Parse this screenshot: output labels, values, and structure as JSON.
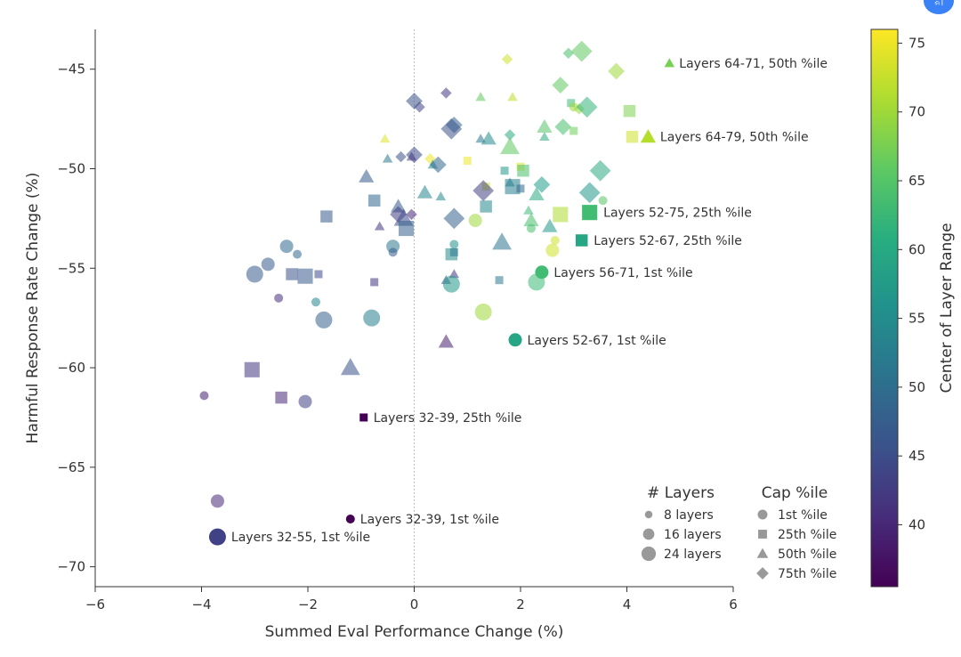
{
  "badge_text": "ᨑᩤ",
  "chart_data": {
    "type": "scatter",
    "xlabel": "Summed Eval Performance Change (%)",
    "ylabel": "Harmful Response Rate Change (%)",
    "xlim": [
      -6,
      6
    ],
    "ylim": [
      -71,
      -43
    ],
    "xticks": [
      "−6",
      "−4",
      "−2",
      "0",
      "2",
      "4",
      "6"
    ],
    "xtick_values": [
      -6,
      -4,
      -2,
      0,
      2,
      4,
      6
    ],
    "yticks": [
      "−45",
      "−50",
      "−55",
      "−60",
      "−65",
      "−70"
    ],
    "ytick_values": [
      -45,
      -50,
      -55,
      -60,
      -65,
      -70
    ],
    "vline_x": 0,
    "colorbar": {
      "label": "Center of Layer Range",
      "range": [
        35.5,
        76
      ],
      "ticks": [
        "40",
        "45",
        "50",
        "55",
        "60",
        "65",
        "70",
        "75"
      ],
      "tick_values": [
        40,
        45,
        50,
        55,
        60,
        65,
        70,
        75
      ],
      "colormap": "viridis"
    },
    "legend_layers": {
      "title": "# Layers",
      "items": [
        {
          "label": "8 layers",
          "size": 8
        },
        {
          "label": "16 layers",
          "size": 16
        },
        {
          "label": "24 layers",
          "size": 24
        }
      ]
    },
    "legend_cap": {
      "title": "Cap %ile",
      "items": [
        {
          "label": "1st %ile",
          "marker": "circle"
        },
        {
          "label": "25th %ile",
          "marker": "square"
        },
        {
          "label": "50th %ile",
          "marker": "triangle"
        },
        {
          "label": "75th %ile",
          "marker": "diamond"
        }
      ]
    },
    "highlighted": [
      {
        "x": 4.8,
        "y": -44.7,
        "marker": "triangle",
        "layers": 8,
        "center": 67.5,
        "label": "Layers 64-71, 50th %ile"
      },
      {
        "x": 4.4,
        "y": -48.4,
        "marker": "triangle",
        "layers": 16,
        "center": 71.5,
        "label": "Layers 64-79, 50th %ile"
      },
      {
        "x": 3.3,
        "y": -52.2,
        "marker": "square",
        "layers": 24,
        "center": 63.5,
        "label": "Layers 52-75, 25th %ile"
      },
      {
        "x": 3.15,
        "y": -53.6,
        "marker": "square",
        "layers": 16,
        "center": 59.5,
        "label": "Layers 52-67, 25th %ile"
      },
      {
        "x": 2.4,
        "y": -55.2,
        "marker": "circle",
        "layers": 16,
        "center": 63.5,
        "label": "Layers 56-71, 1st %ile"
      },
      {
        "x": 1.9,
        "y": -58.6,
        "marker": "circle",
        "layers": 16,
        "center": 59.5,
        "label": "Layers 52-67, 1st %ile"
      },
      {
        "x": -0.95,
        "y": -62.5,
        "marker": "square",
        "layers": 8,
        "center": 35.5,
        "label": "Layers 32-39, 25th %ile"
      },
      {
        "x": -1.2,
        "y": -67.6,
        "marker": "circle",
        "layers": 8,
        "center": 35.5,
        "label": "Layers 32-39, 1st %ile"
      },
      {
        "x": -3.7,
        "y": -68.5,
        "marker": "circle",
        "layers": 24,
        "center": 43.5,
        "label": "Layers 32-55, 1st %ile"
      }
    ],
    "points": [
      {
        "x": -3.7,
        "y": -66.7,
        "m": "circle",
        "s": 16,
        "c": 40
      },
      {
        "x": -3.95,
        "y": -61.4,
        "m": "circle",
        "s": 8,
        "c": 39
      },
      {
        "x": -3.05,
        "y": -60.1,
        "m": "square",
        "s": 24,
        "c": 42
      },
      {
        "x": -2.5,
        "y": -61.5,
        "m": "square",
        "s": 16,
        "c": 40
      },
      {
        "x": -2.05,
        "y": -61.7,
        "m": "circle",
        "s": 16,
        "c": 43
      },
      {
        "x": -1.2,
        "y": -60.0,
        "m": "triangle",
        "s": 24,
        "c": 46
      },
      {
        "x": 0.6,
        "y": -58.7,
        "m": "triangle",
        "s": 16,
        "c": 39
      },
      {
        "x": -3.0,
        "y": -55.3,
        "m": "circle",
        "s": 24,
        "c": 47
      },
      {
        "x": -2.75,
        "y": -54.8,
        "m": "circle",
        "s": 16,
        "c": 47
      },
      {
        "x": -2.55,
        "y": -56.5,
        "m": "circle",
        "s": 8,
        "c": 41
      },
      {
        "x": -2.4,
        "y": -53.9,
        "m": "circle",
        "s": 16,
        "c": 49
      },
      {
        "x": -2.2,
        "y": -54.3,
        "m": "circle",
        "s": 8,
        "c": 49
      },
      {
        "x": -2.3,
        "y": -55.3,
        "m": "square",
        "s": 16,
        "c": 46
      },
      {
        "x": -2.05,
        "y": -55.4,
        "m": "square",
        "s": 24,
        "c": 47
      },
      {
        "x": -1.8,
        "y": -55.3,
        "m": "square",
        "s": 8,
        "c": 45
      },
      {
        "x": -1.85,
        "y": -56.7,
        "m": "circle",
        "s": 8,
        "c": 54
      },
      {
        "x": -1.7,
        "y": -57.6,
        "m": "circle",
        "s": 24,
        "c": 48
      },
      {
        "x": -1.65,
        "y": -52.4,
        "m": "square",
        "s": 16,
        "c": 47
      },
      {
        "x": -0.8,
        "y": -57.5,
        "m": "circle",
        "s": 24,
        "c": 53
      },
      {
        "x": -0.75,
        "y": -55.7,
        "m": "square",
        "s": 8,
        "c": 42
      },
      {
        "x": -0.75,
        "y": -51.6,
        "m": "square",
        "s": 16,
        "c": 49
      },
      {
        "x": -0.9,
        "y": -50.4,
        "m": "triangle",
        "s": 16,
        "c": 47
      },
      {
        "x": -0.65,
        "y": -52.9,
        "m": "triangle",
        "s": 8,
        "c": 42
      },
      {
        "x": -0.5,
        "y": -49.5,
        "m": "triangle",
        "s": 8,
        "c": 52
      },
      {
        "x": -0.4,
        "y": -53.9,
        "m": "circle",
        "s": 16,
        "c": 52
      },
      {
        "x": -0.4,
        "y": -54.2,
        "m": "circle",
        "s": 8,
        "c": 47
      },
      {
        "x": -0.3,
        "y": -51.9,
        "m": "triangle",
        "s": 16,
        "c": 47
      },
      {
        "x": -0.3,
        "y": -52.3,
        "m": "diamond",
        "s": 16,
        "c": 43
      },
      {
        "x": -0.25,
        "y": -49.4,
        "m": "diamond",
        "s": 8,
        "c": 46
      },
      {
        "x": -0.2,
        "y": -52.5,
        "m": "triangle",
        "s": 24,
        "c": 45
      },
      {
        "x": -0.15,
        "y": -53.0,
        "m": "square",
        "s": 24,
        "c": 48
      },
      {
        "x": -0.05,
        "y": -52.3,
        "m": "diamond",
        "s": 8,
        "c": 40
      },
      {
        "x": 0.0,
        "y": -46.6,
        "m": "diamond",
        "s": 16,
        "c": 46
      },
      {
        "x": 0.1,
        "y": -46.9,
        "m": "diamond",
        "s": 8,
        "c": 44
      },
      {
        "x": 0.0,
        "y": -49.3,
        "m": "diamond",
        "s": 16,
        "c": 45
      },
      {
        "x": -0.05,
        "y": -49.4,
        "m": "triangle",
        "s": 8,
        "c": 42
      },
      {
        "x": -0.55,
        "y": -48.5,
        "m": "triangle",
        "s": 8,
        "c": 74
      },
      {
        "x": 0.3,
        "y": -49.5,
        "m": "diamond",
        "s": 8,
        "c": 75
      },
      {
        "x": 0.35,
        "y": -49.8,
        "m": "triangle",
        "s": 8,
        "c": 55
      },
      {
        "x": 0.45,
        "y": -49.8,
        "m": "diamond",
        "s": 16,
        "c": 49
      },
      {
        "x": 0.2,
        "y": -51.2,
        "m": "triangle",
        "s": 16,
        "c": 54
      },
      {
        "x": 0.5,
        "y": -51.4,
        "m": "triangle",
        "s": 8,
        "c": 55
      },
      {
        "x": 0.6,
        "y": -46.2,
        "m": "diamond",
        "s": 8,
        "c": 42
      },
      {
        "x": 0.75,
        "y": -47.8,
        "m": "diamond",
        "s": 16,
        "c": 48
      },
      {
        "x": 0.7,
        "y": -48.0,
        "m": "diamond",
        "s": 24,
        "c": 46
      },
      {
        "x": 0.75,
        "y": -52.5,
        "m": "diamond",
        "s": 24,
        "c": 48
      },
      {
        "x": 0.75,
        "y": -53.8,
        "m": "circle",
        "s": 8,
        "c": 56
      },
      {
        "x": 0.7,
        "y": -54.3,
        "m": "square",
        "s": 16,
        "c": 55
      },
      {
        "x": 0.75,
        "y": -54.2,
        "m": "square",
        "s": 8,
        "c": 52
      },
      {
        "x": 0.6,
        "y": -55.6,
        "m": "triangle",
        "s": 8,
        "c": 46
      },
      {
        "x": 0.75,
        "y": -55.3,
        "m": "triangle",
        "s": 8,
        "c": 42
      },
      {
        "x": 0.7,
        "y": -55.8,
        "m": "circle",
        "s": 24,
        "c": 57
      },
      {
        "x": 1.0,
        "y": -49.6,
        "m": "square",
        "s": 8,
        "c": 75
      },
      {
        "x": 1.15,
        "y": -52.6,
        "m": "circle",
        "s": 16,
        "c": 70
      },
      {
        "x": 1.3,
        "y": -57.2,
        "m": "circle",
        "s": 24,
        "c": 70
      },
      {
        "x": 1.25,
        "y": -46.4,
        "m": "triangle",
        "s": 8,
        "c": 66
      },
      {
        "x": 1.25,
        "y": -48.5,
        "m": "triangle",
        "s": 8,
        "c": 52
      },
      {
        "x": 1.4,
        "y": -48.5,
        "m": "triangle",
        "s": 16,
        "c": 55
      },
      {
        "x": 1.35,
        "y": -50.9,
        "m": "square",
        "s": 8,
        "c": 73
      },
      {
        "x": 1.3,
        "y": -51.1,
        "m": "diamond",
        "s": 24,
        "c": 43
      },
      {
        "x": 1.35,
        "y": -51.9,
        "m": "square",
        "s": 16,
        "c": 55
      },
      {
        "x": 1.65,
        "y": -53.7,
        "m": "triangle",
        "s": 24,
        "c": 51
      },
      {
        "x": 1.6,
        "y": -55.6,
        "m": "square",
        "s": 8,
        "c": 52
      },
      {
        "x": 1.75,
        "y": -44.5,
        "m": "diamond",
        "s": 8,
        "c": 73
      },
      {
        "x": 1.85,
        "y": -46.4,
        "m": "triangle",
        "s": 8,
        "c": 72
      },
      {
        "x": 1.8,
        "y": -48.3,
        "m": "diamond",
        "s": 8,
        "c": 60
      },
      {
        "x": 1.8,
        "y": -48.9,
        "m": "triangle",
        "s": 24,
        "c": 66
      },
      {
        "x": 1.7,
        "y": -50.1,
        "m": "square",
        "s": 8,
        "c": 57
      },
      {
        "x": 1.8,
        "y": -50.7,
        "m": "triangle",
        "s": 8,
        "c": 53
      },
      {
        "x": 1.85,
        "y": -50.9,
        "m": "square",
        "s": 24,
        "c": 53
      },
      {
        "x": 2.0,
        "y": -51.0,
        "m": "square",
        "s": 8,
        "c": 49
      },
      {
        "x": 2.0,
        "y": -49.9,
        "m": "square",
        "s": 8,
        "c": 74
      },
      {
        "x": 2.05,
        "y": -50.1,
        "m": "square",
        "s": 16,
        "c": 64
      },
      {
        "x": 2.2,
        "y": -52.6,
        "m": "triangle",
        "s": 16,
        "c": 64
      },
      {
        "x": 2.2,
        "y": -53.0,
        "m": "circle",
        "s": 8,
        "c": 64
      },
      {
        "x": 2.15,
        "y": -52.1,
        "m": "triangle",
        "s": 8,
        "c": 63
      },
      {
        "x": 2.3,
        "y": -51.3,
        "m": "triangle",
        "s": 16,
        "c": 60
      },
      {
        "x": 2.4,
        "y": -50.8,
        "m": "diamond",
        "s": 16,
        "c": 58
      },
      {
        "x": 2.45,
        "y": -47.9,
        "m": "triangle",
        "s": 16,
        "c": 65
      },
      {
        "x": 2.45,
        "y": -48.4,
        "m": "triangle",
        "s": 8,
        "c": 60
      },
      {
        "x": 2.55,
        "y": -52.9,
        "m": "triangle",
        "s": 16,
        "c": 57
      },
      {
        "x": 2.6,
        "y": -54.1,
        "m": "circle",
        "s": 16,
        "c": 73
      },
      {
        "x": 2.65,
        "y": -53.6,
        "m": "circle",
        "s": 8,
        "c": 73
      },
      {
        "x": 2.3,
        "y": -55.7,
        "m": "circle",
        "s": 24,
        "c": 63
      },
      {
        "x": 2.75,
        "y": -45.8,
        "m": "diamond",
        "s": 16,
        "c": 66
      },
      {
        "x": 2.8,
        "y": -47.9,
        "m": "diamond",
        "s": 16,
        "c": 64
      },
      {
        "x": 2.75,
        "y": -52.3,
        "m": "square",
        "s": 24,
        "c": 71
      },
      {
        "x": 2.9,
        "y": -44.2,
        "m": "diamond",
        "s": 8,
        "c": 64
      },
      {
        "x": 2.95,
        "y": -46.7,
        "m": "square",
        "s": 8,
        "c": 63
      },
      {
        "x": 3.0,
        "y": -48.1,
        "m": "square",
        "s": 8,
        "c": 67
      },
      {
        "x": 3.0,
        "y": -46.9,
        "m": "circle",
        "s": 8,
        "c": 70
      },
      {
        "x": 3.1,
        "y": -47.0,
        "m": "diamond",
        "s": 8,
        "c": 70
      },
      {
        "x": 3.15,
        "y": -44.1,
        "m": "diamond",
        "s": 24,
        "c": 66
      },
      {
        "x": 3.25,
        "y": -46.9,
        "m": "diamond",
        "s": 24,
        "c": 62
      },
      {
        "x": 3.3,
        "y": -51.2,
        "m": "diamond",
        "s": 24,
        "c": 57
      },
      {
        "x": 3.5,
        "y": -50.1,
        "m": "diamond",
        "s": 24,
        "c": 60
      },
      {
        "x": 3.55,
        "y": -51.6,
        "m": "circle",
        "s": 8,
        "c": 65
      },
      {
        "x": 3.8,
        "y": -45.1,
        "m": "diamond",
        "s": 16,
        "c": 70
      },
      {
        "x": 4.05,
        "y": -47.1,
        "m": "square",
        "s": 16,
        "c": 68
      },
      {
        "x": 4.1,
        "y": -48.4,
        "m": "square",
        "s": 16,
        "c": 73
      }
    ]
  }
}
